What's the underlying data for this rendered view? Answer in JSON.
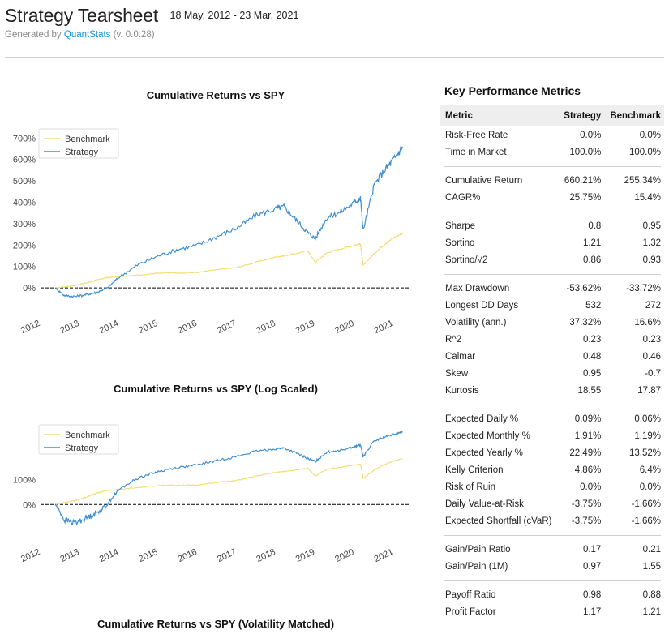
{
  "header": {
    "title": "Strategy Tearsheet",
    "dates": "18 May, 2012 - 23 Mar, 2021",
    "generated_prefix": "Generated by ",
    "generated_link": "QuantStats",
    "generated_version": " (v. 0.0.28)"
  },
  "colors": {
    "benchmark": "#f5dc76",
    "strategy": "#3f8fcf",
    "zero_line": "#000000"
  },
  "chart_data": [
    {
      "type": "line",
      "title": "Cumulative Returns vs SPY",
      "xlabel": "",
      "ylabel": "",
      "x_ticks": [
        "2012",
        "2013",
        "2014",
        "2015",
        "2016",
        "2017",
        "2018",
        "2019",
        "2020",
        "2021"
      ],
      "y_ticks": [
        "0%",
        "100%",
        "200%",
        "300%",
        "400%",
        "500%",
        "600%",
        "700%"
      ],
      "ylim": [
        -60,
        720
      ],
      "legend": [
        "Benchmark",
        "Strategy"
      ],
      "legend_position": "top-left",
      "x": [
        2012.38,
        2012.6,
        2012.9,
        2013.2,
        2013.45,
        2013.7,
        2014.0,
        2014.5,
        2015.0,
        2015.5,
        2016.0,
        2016.5,
        2017.0,
        2017.5,
        2018.0,
        2018.2,
        2018.5,
        2018.8,
        2019.0,
        2019.3,
        2019.6,
        2020.0,
        2020.15,
        2020.22,
        2020.5,
        2020.8,
        2021.0,
        2021.22
      ],
      "series": [
        {
          "name": "Benchmark",
          "values": [
            0,
            5,
            12,
            25,
            38,
            48,
            52,
            60,
            70,
            70,
            72,
            85,
            95,
            120,
            145,
            150,
            160,
            175,
            120,
            165,
            180,
            200,
            205,
            105,
            160,
            210,
            235,
            255
          ]
        },
        {
          "name": "Strategy",
          "values": [
            0,
            -35,
            -40,
            -30,
            -20,
            0,
            50,
            110,
            150,
            180,
            200,
            240,
            280,
            340,
            370,
            380,
            320,
            260,
            230,
            330,
            350,
            400,
            420,
            270,
            480,
            560,
            600,
            660
          ]
        }
      ]
    },
    {
      "type": "line",
      "title": "Cumulative Returns vs SPY (Log Scaled)",
      "xlabel": "",
      "ylabel": "",
      "x_ticks": [
        "2012",
        "2013",
        "2014",
        "2015",
        "2016",
        "2017",
        "2018",
        "2019",
        "2020",
        "2021"
      ],
      "y_ticks": [
        "0%",
        "100%"
      ],
      "y_scale": "log",
      "ylim": [
        -50,
        740
      ],
      "legend": [
        "Benchmark",
        "Strategy"
      ],
      "legend_position": "top-left",
      "x": [
        2012.38,
        2012.6,
        2012.9,
        2013.2,
        2013.45,
        2013.7,
        2014.0,
        2014.5,
        2015.0,
        2015.5,
        2016.0,
        2016.5,
        2017.0,
        2017.5,
        2018.0,
        2018.2,
        2018.5,
        2018.8,
        2019.0,
        2019.3,
        2019.6,
        2020.0,
        2020.15,
        2020.22,
        2020.5,
        2020.8,
        2021.0,
        2021.22
      ],
      "series": [
        {
          "name": "Benchmark",
          "values": [
            0,
            5,
            12,
            25,
            38,
            48,
            52,
            60,
            70,
            70,
            72,
            85,
            95,
            120,
            145,
            150,
            160,
            175,
            120,
            165,
            180,
            200,
            205,
            105,
            160,
            210,
            235,
            255
          ]
        },
        {
          "name": "Strategy",
          "values": [
            0,
            -35,
            -40,
            -30,
            -20,
            0,
            50,
            110,
            150,
            180,
            200,
            240,
            280,
            340,
            370,
            380,
            320,
            260,
            230,
            330,
            350,
            400,
            420,
            270,
            480,
            560,
            600,
            660
          ]
        }
      ]
    }
  ],
  "third_chart": {
    "title": "Cumulative Returns vs SPY (Volatility Matched)"
  },
  "metrics": {
    "title": "Key Performance Metrics",
    "columns": [
      "Metric",
      "Strategy",
      "Benchmark"
    ],
    "groups": [
      [
        [
          "Risk-Free Rate",
          "0.0%",
          "0.0%"
        ],
        [
          "Time in Market",
          "100.0%",
          "100.0%"
        ]
      ],
      [
        [
          "Cumulative Return",
          "660.21%",
          "255.34%"
        ],
        [
          "CAGR%",
          "25.75%",
          "15.4%"
        ]
      ],
      [
        [
          "Sharpe",
          "0.8",
          "0.95"
        ],
        [
          "Sortino",
          "1.21",
          "1.32"
        ],
        [
          "Sortino/√2",
          "0.86",
          "0.93"
        ]
      ],
      [
        [
          "Max Drawdown",
          "-53.62%",
          "-33.72%"
        ],
        [
          "Longest DD Days",
          "532",
          "272"
        ],
        [
          "Volatility (ann.)",
          "37.32%",
          "16.6%"
        ],
        [
          "R^2",
          "0.23",
          "0.23"
        ],
        [
          "Calmar",
          "0.48",
          "0.46"
        ],
        [
          "Skew",
          "0.95",
          "-0.7"
        ],
        [
          "Kurtosis",
          "18.55",
          "17.87"
        ]
      ],
      [
        [
          "Expected Daily %",
          "0.09%",
          "0.06%"
        ],
        [
          "Expected Monthly %",
          "1.91%",
          "1.19%"
        ],
        [
          "Expected Yearly %",
          "22.49%",
          "13.52%"
        ],
        [
          "Kelly Criterion",
          "4.86%",
          "6.4%"
        ],
        [
          "Risk of Ruin",
          "0.0%",
          "0.0%"
        ],
        [
          "Daily Value-at-Risk",
          "-3.75%",
          "-1.66%"
        ],
        [
          "Expected Shortfall (cVaR)",
          "-3.75%",
          "-1.66%"
        ]
      ],
      [
        [
          "Gain/Pain Ratio",
          "0.17",
          "0.21"
        ],
        [
          "Gain/Pain (1M)",
          "0.97",
          "1.55"
        ]
      ],
      [
        [
          "Payoff Ratio",
          "0.98",
          "0.88"
        ],
        [
          "Profit Factor",
          "1.17",
          "1.21"
        ]
      ]
    ]
  }
}
